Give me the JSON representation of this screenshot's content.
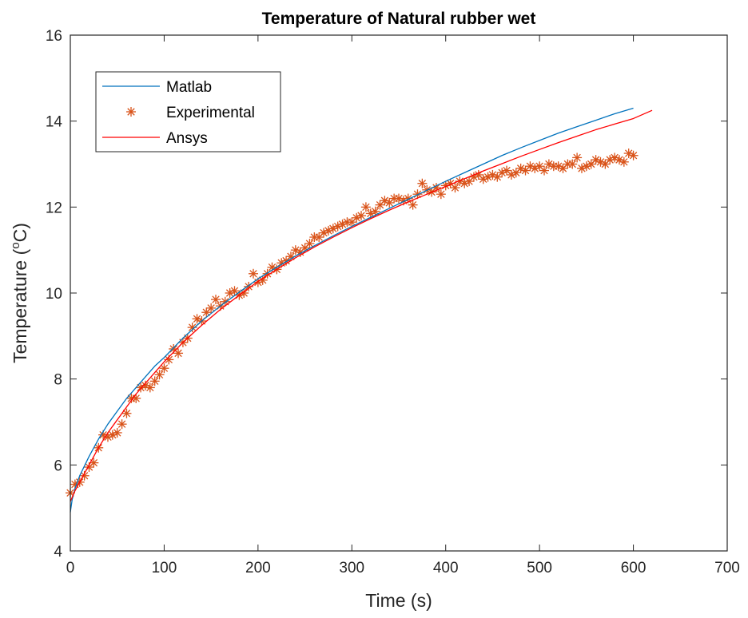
{
  "chart_data": {
    "type": "line",
    "title": "Temperature of Natural rubber wet",
    "xlabel": "Time (s)",
    "ylabel_prefix": "Temperature (",
    "ylabel_sup": "o",
    "ylabel_suffix": "C)",
    "xlim": [
      0,
      700
    ],
    "ylim": [
      4,
      16
    ],
    "xticks": [
      0,
      100,
      200,
      300,
      400,
      500,
      600,
      700
    ],
    "yticks": [
      4,
      6,
      8,
      10,
      12,
      14,
      16
    ],
    "xtick_labels": [
      "0",
      "100",
      "200",
      "300",
      "400",
      "500",
      "600",
      "700"
    ],
    "ytick_labels": [
      "4",
      "6",
      "8",
      "10",
      "12",
      "14",
      "16"
    ],
    "grid": false,
    "legend_position": "top-left",
    "series": [
      {
        "name": "Matlab",
        "style": "line",
        "color": "#0072BD",
        "x": [
          0,
          2,
          5,
          10,
          20,
          30,
          40,
          50,
          60,
          70,
          80,
          90,
          100,
          120,
          140,
          160,
          180,
          200,
          220,
          240,
          260,
          280,
          300,
          320,
          340,
          360,
          380,
          400,
          420,
          440,
          460,
          480,
          500,
          520,
          540,
          560,
          580,
          600
        ],
        "y": [
          4.9,
          5.2,
          5.45,
          5.75,
          6.2,
          6.6,
          6.95,
          7.25,
          7.55,
          7.8,
          8.05,
          8.3,
          8.5,
          8.95,
          9.35,
          9.7,
          10.02,
          10.33,
          10.6,
          10.86,
          11.1,
          11.33,
          11.55,
          11.76,
          11.97,
          12.18,
          12.39,
          12.6,
          12.8,
          13.0,
          13.2,
          13.38,
          13.55,
          13.72,
          13.87,
          14.02,
          14.17,
          14.3
        ]
      },
      {
        "name": "Experimental",
        "style": "markers",
        "marker": "asterisk",
        "color": "#D95319",
        "x": [
          0,
          5,
          10,
          15,
          20,
          25,
          30,
          35,
          40,
          45,
          50,
          55,
          60,
          65,
          70,
          75,
          80,
          85,
          90,
          95,
          100,
          105,
          110,
          115,
          120,
          125,
          130,
          135,
          140,
          145,
          150,
          155,
          160,
          165,
          170,
          175,
          180,
          185,
          190,
          195,
          200,
          205,
          210,
          215,
          220,
          225,
          230,
          235,
          240,
          245,
          250,
          255,
          260,
          265,
          270,
          275,
          280,
          285,
          290,
          295,
          300,
          305,
          310,
          315,
          320,
          325,
          330,
          335,
          340,
          345,
          350,
          355,
          360,
          365,
          370,
          375,
          380,
          385,
          390,
          395,
          400,
          405,
          410,
          415,
          420,
          425,
          430,
          435,
          440,
          445,
          450,
          455,
          460,
          465,
          470,
          475,
          480,
          485,
          490,
          495,
          500,
          505,
          510,
          515,
          520,
          525,
          530,
          535,
          540,
          545,
          550,
          555,
          560,
          565,
          570,
          575,
          580,
          585,
          590,
          595,
          600
        ],
        "y": [
          5.35,
          5.55,
          5.6,
          5.75,
          5.95,
          6.05,
          6.4,
          6.7,
          6.65,
          6.7,
          6.75,
          6.95,
          7.2,
          7.55,
          7.55,
          7.8,
          7.85,
          7.8,
          7.95,
          8.1,
          8.25,
          8.45,
          8.7,
          8.6,
          8.85,
          8.95,
          9.2,
          9.4,
          9.35,
          9.55,
          9.65,
          9.85,
          9.7,
          9.8,
          10.0,
          10.05,
          9.95,
          10.0,
          10.15,
          10.45,
          10.25,
          10.3,
          10.45,
          10.6,
          10.55,
          10.7,
          10.75,
          10.85,
          11.0,
          10.95,
          11.05,
          11.15,
          11.3,
          11.3,
          11.4,
          11.45,
          11.5,
          11.55,
          11.6,
          11.65,
          11.65,
          11.75,
          11.8,
          12.0,
          11.85,
          11.9,
          12.05,
          12.15,
          12.1,
          12.2,
          12.2,
          12.15,
          12.2,
          12.05,
          12.3,
          12.55,
          12.4,
          12.35,
          12.45,
          12.3,
          12.5,
          12.55,
          12.45,
          12.6,
          12.55,
          12.6,
          12.7,
          12.75,
          12.65,
          12.7,
          12.75,
          12.7,
          12.8,
          12.85,
          12.75,
          12.8,
          12.9,
          12.85,
          12.95,
          12.9,
          12.95,
          12.85,
          13.0,
          12.95,
          12.95,
          12.9,
          13.0,
          13.0,
          13.15,
          12.9,
          12.95,
          13.0,
          13.1,
          13.05,
          13.0,
          13.1,
          13.15,
          13.1,
          13.05,
          13.25,
          13.2
        ]
      },
      {
        "name": "Ansys",
        "style": "line",
        "color": "#FF0000",
        "x": [
          0,
          5,
          10,
          20,
          30,
          40,
          50,
          60,
          70,
          80,
          90,
          100,
          120,
          140,
          160,
          180,
          200,
          220,
          240,
          260,
          280,
          300,
          320,
          340,
          360,
          380,
          400,
          420,
          440,
          460,
          480,
          500,
          520,
          540,
          560,
          580,
          600,
          620
        ],
        "y": [
          5.15,
          5.4,
          5.6,
          6.0,
          6.4,
          6.75,
          7.05,
          7.35,
          7.65,
          7.9,
          8.15,
          8.4,
          8.85,
          9.25,
          9.62,
          9.95,
          10.27,
          10.55,
          10.82,
          11.07,
          11.3,
          11.52,
          11.73,
          11.93,
          12.12,
          12.3,
          12.48,
          12.66,
          12.84,
          13.01,
          13.18,
          13.34,
          13.5,
          13.65,
          13.8,
          13.93,
          14.06,
          14.25
        ]
      }
    ]
  }
}
